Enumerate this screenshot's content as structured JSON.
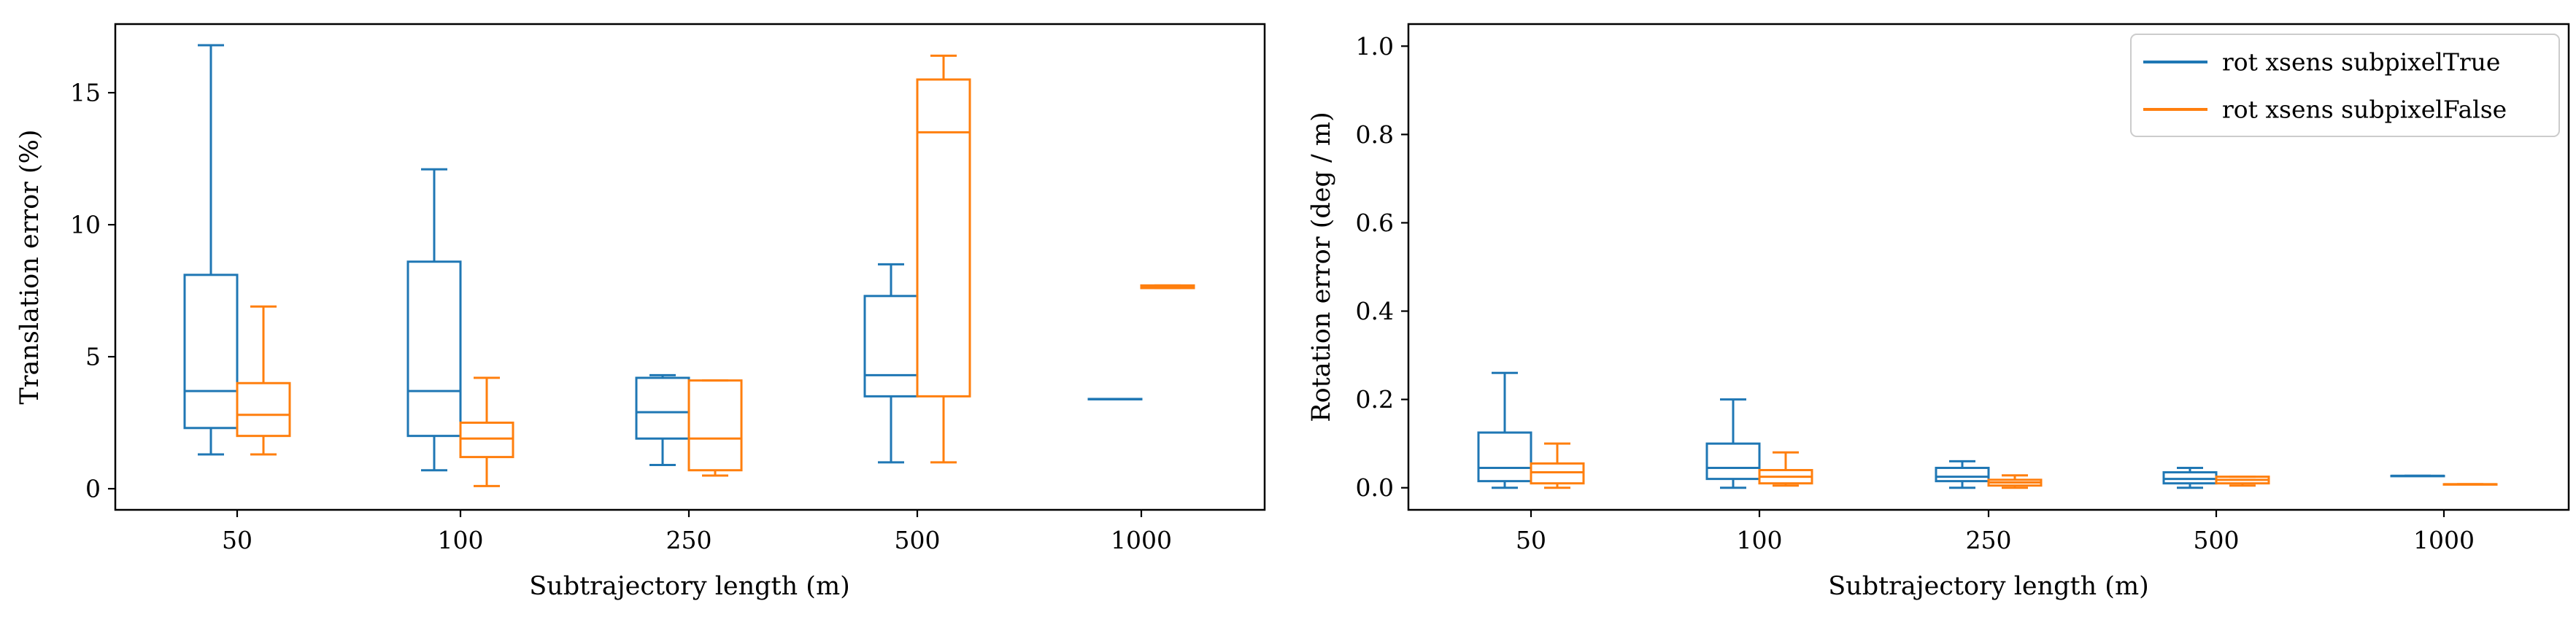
{
  "colors": {
    "series_true": "#1f77b4",
    "series_false": "#ff7f0e",
    "axis": "#000000",
    "background": "#ffffff"
  },
  "chart_data": [
    {
      "type": "box",
      "xlabel": "Subtrajectory length (m)",
      "ylabel": "Translation error (%)",
      "categories": [
        "50",
        "100",
        "250",
        "500",
        "1000"
      ],
      "ylim": [
        -0.8,
        17.6
      ],
      "yticks": [
        0,
        5,
        10,
        15
      ],
      "ytick_labels": [
        "0",
        "5",
        "10",
        "15"
      ],
      "grid": false,
      "series": [
        {
          "color": "#1f77b4",
          "boxes": [
            {
              "whislo": 1.3,
              "q1": 2.3,
              "med": 3.7,
              "q3": 8.1,
              "whishi": 16.8
            },
            {
              "whislo": 0.7,
              "q1": 2.0,
              "med": 3.7,
              "q3": 8.6,
              "whishi": 12.1
            },
            {
              "whislo": 0.9,
              "q1": 1.9,
              "med": 2.9,
              "q3": 4.2,
              "whishi": 4.3
            },
            {
              "whislo": 1.0,
              "q1": 3.5,
              "med": 4.3,
              "q3": 7.3,
              "whishi": 8.5
            },
            {
              "whislo": 3.4,
              "q1": 3.4,
              "med": 3.4,
              "q3": 3.4,
              "whishi": 3.4
            }
          ]
        },
        {
          "color": "#ff7f0e",
          "boxes": [
            {
              "whislo": 1.3,
              "q1": 2.0,
              "med": 2.8,
              "q3": 4.0,
              "whishi": 6.9
            },
            {
              "whislo": 0.1,
              "q1": 1.2,
              "med": 1.9,
              "q3": 2.5,
              "whishi": 4.2
            },
            {
              "whislo": 0.5,
              "q1": 0.7,
              "med": 1.9,
              "q3": 4.1,
              "whishi": 4.1
            },
            {
              "whislo": 1.0,
              "q1": 3.5,
              "med": 13.5,
              "q3": 15.5,
              "whishi": 16.4
            },
            {
              "whislo": 7.6,
              "q1": 7.6,
              "med": 7.65,
              "q3": 7.7,
              "whishi": 7.7
            }
          ]
        }
      ]
    },
    {
      "type": "box",
      "xlabel": "Subtrajectory length (m)",
      "ylabel": "Rotation error (deg / m)",
      "categories": [
        "50",
        "100",
        "250",
        "500",
        "1000"
      ],
      "ylim": [
        -0.05,
        1.05
      ],
      "yticks": [
        0.0,
        0.2,
        0.4,
        0.6,
        0.8,
        1.0
      ],
      "ytick_labels": [
        "0.0",
        "0.2",
        "0.4",
        "0.6",
        "0.8",
        "1.0"
      ],
      "grid": false,
      "legend_position": "top-right",
      "series": [
        {
          "name": "rot xsens subpixelTrue",
          "color": "#1f77b4",
          "boxes": [
            {
              "whislo": 0.0,
              "q1": 0.015,
              "med": 0.045,
              "q3": 0.125,
              "whishi": 0.26
            },
            {
              "whislo": 0.0,
              "q1": 0.02,
              "med": 0.045,
              "q3": 0.1,
              "whishi": 0.2
            },
            {
              "whislo": 0.0,
              "q1": 0.015,
              "med": 0.025,
              "q3": 0.045,
              "whishi": 0.06
            },
            {
              "whislo": 0.0,
              "q1": 0.01,
              "med": 0.02,
              "q3": 0.035,
              "whishi": 0.045
            },
            {
              "whislo": 0.027,
              "q1": 0.027,
              "med": 0.027,
              "q3": 0.027,
              "whishi": 0.027
            }
          ]
        },
        {
          "name": "rot xsens subpixelFalse",
          "color": "#ff7f0e",
          "boxes": [
            {
              "whislo": 0.0,
              "q1": 0.01,
              "med": 0.035,
              "q3": 0.055,
              "whishi": 0.1
            },
            {
              "whislo": 0.005,
              "q1": 0.01,
              "med": 0.025,
              "q3": 0.04,
              "whishi": 0.08
            },
            {
              "whislo": 0.0,
              "q1": 0.005,
              "med": 0.012,
              "q3": 0.018,
              "whishi": 0.028
            },
            {
              "whislo": 0.005,
              "q1": 0.01,
              "med": 0.018,
              "q3": 0.025,
              "whishi": 0.025
            },
            {
              "whislo": 0.008,
              "q1": 0.008,
              "med": 0.008,
              "q3": 0.008,
              "whishi": 0.008
            }
          ]
        }
      ]
    }
  ]
}
